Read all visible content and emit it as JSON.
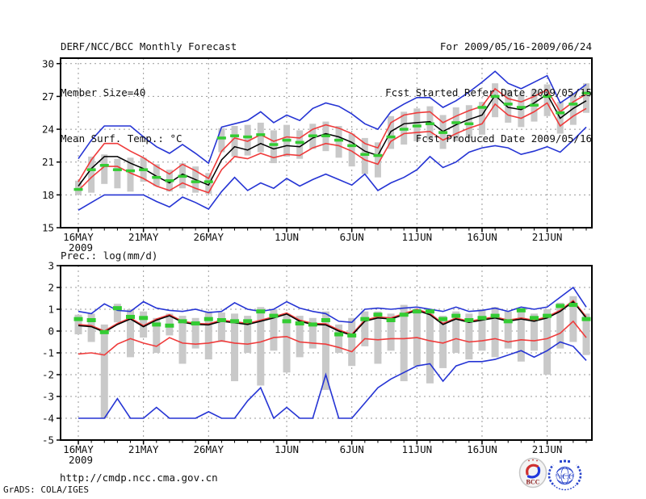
{
  "header": {
    "left": [
      "DERF/NCC/BCC Monthly Forecast",
      "Member Size=40",
      "Mean Surf. Temp.: °C"
    ],
    "right": [
      "For 2009/05/16-2009/06/24",
      "Fcst Started Refer Date 2009/05/15",
      "Fcst Produced Date 2009/05/16"
    ]
  },
  "footer": {
    "url": "http://cmdp.ncc.cma.gov.cn",
    "credit": "GrADS: COLA/IGES"
  },
  "logos": {
    "bcc": "BCC",
    "ncc": "NCC"
  },
  "colors": {
    "blue": "#2534d4",
    "red": "#ef3b3b",
    "black": "#000000",
    "green": "#33cc33",
    "bar_gray": "#c9c9c9",
    "grid": "#999999"
  },
  "chart_data": [
    {
      "type": "line",
      "title": "Mean Surf. Temp.: °C",
      "x_year_label": "2009",
      "x_tick_days": [
        0,
        5,
        10,
        16,
        21,
        26,
        31,
        36
      ],
      "x_tick_labels": [
        "16MAY",
        "21MAY",
        "26MAY",
        "1JUN",
        "6JUN",
        "11JUN",
        "16JUN",
        "21JUN"
      ],
      "n_days": 40,
      "ylim": [
        15,
        30
      ],
      "yticks": [
        15,
        18,
        21,
        24,
        27,
        30
      ],
      "grid": "dotted",
      "legend": "none",
      "series": [
        {
          "name": "ensemble-max-blue",
          "color": "#2534d4",
          "values": [
            21.3,
            23.0,
            24.3,
            24.3,
            24.3,
            23.3,
            22.4,
            21.8,
            22.6,
            21.8,
            20.9,
            24.2,
            24.5,
            24.8,
            25.6,
            24.6,
            25.3,
            24.8,
            25.9,
            26.4,
            26.1,
            25.4,
            24.5,
            24.0,
            25.6,
            26.3,
            26.9,
            26.9,
            26.0,
            26.6,
            27.4,
            28.3,
            29.3,
            28.2,
            27.7,
            28.3,
            28.9,
            26.4,
            27.2,
            28.1
          ]
        },
        {
          "name": "spread-upper-red",
          "color": "#ef3b3b",
          "values": [
            19.2,
            21.2,
            22.7,
            22.7,
            22.0,
            21.4,
            20.6,
            19.9,
            20.8,
            20.2,
            19.5,
            22.0,
            23.2,
            22.9,
            23.5,
            22.9,
            23.3,
            23.2,
            24.0,
            24.4,
            24.1,
            23.6,
            22.7,
            22.3,
            24.6,
            25.3,
            25.5,
            25.6,
            24.6,
            25.2,
            25.7,
            26.1,
            27.7,
            26.8,
            26.5,
            27.0,
            27.6,
            25.6,
            26.5,
            27.2
          ]
        },
        {
          "name": "ensemble-mean-black",
          "color": "#000000",
          "values": [
            18.8,
            20.4,
            21.5,
            21.5,
            20.9,
            20.4,
            19.7,
            19.1,
            19.9,
            19.4,
            18.9,
            21.2,
            22.4,
            22.1,
            22.7,
            22.2,
            22.5,
            22.4,
            23.2,
            23.6,
            23.3,
            22.8,
            22.0,
            21.6,
            23.8,
            24.5,
            24.6,
            24.7,
            23.8,
            24.4,
            24.9,
            25.3,
            27.1,
            26.0,
            25.8,
            26.4,
            27.2,
            25.0,
            25.9,
            26.6
          ]
        },
        {
          "name": "spread-lower-red",
          "color": "#ef3b3b",
          "values": [
            18.4,
            19.6,
            20.6,
            20.6,
            20.0,
            19.5,
            18.8,
            18.4,
            19.1,
            18.6,
            18.2,
            20.3,
            21.5,
            21.3,
            21.8,
            21.4,
            21.7,
            21.6,
            22.3,
            22.7,
            22.5,
            22.0,
            21.2,
            20.8,
            22.9,
            23.6,
            23.7,
            23.8,
            23.0,
            23.6,
            24.1,
            24.5,
            26.3,
            25.3,
            25.0,
            25.6,
            26.4,
            24.3,
            25.2,
            25.9
          ]
        },
        {
          "name": "ensemble-min-blue",
          "color": "#2534d4",
          "values": [
            16.6,
            17.3,
            18.0,
            18.0,
            18.0,
            18.0,
            17.4,
            16.9,
            17.8,
            17.3,
            16.7,
            18.3,
            19.6,
            18.4,
            19.1,
            18.6,
            19.5,
            18.8,
            19.4,
            19.9,
            19.4,
            18.9,
            19.9,
            18.4,
            19.1,
            19.6,
            20.3,
            21.5,
            20.5,
            21.0,
            21.9,
            22.3,
            22.5,
            22.3,
            21.7,
            22.0,
            22.4,
            21.9,
            23.0,
            24.2
          ]
        }
      ],
      "dashes": {
        "name": "green-daily-dashes",
        "color": "#33cc33",
        "values": [
          18.5,
          20.3,
          20.7,
          20.3,
          20.2,
          20.3,
          19.6,
          19.3,
          19.7,
          19.2,
          19.2,
          23.2,
          23.4,
          23.3,
          23.5,
          22.6,
          23.0,
          22.8,
          23.4,
          23.4,
          23.0,
          22.5,
          21.7,
          21.6,
          23.3,
          24.0,
          24.3,
          24.5,
          23.7,
          24.6,
          24.5,
          26.0,
          27.0,
          26.3,
          26.0,
          26.2,
          27.0,
          25.5,
          26.3,
          27.3
        ]
      },
      "bars": {
        "name": "ensemble-spread-bars",
        "color": "#c9c9c9",
        "lo": [
          18.0,
          18.2,
          19.0,
          18.6,
          18.3,
          19.2,
          18.8,
          18.3,
          18.6,
          18.2,
          18.1,
          21.9,
          21.5,
          21.6,
          21.9,
          20.9,
          21.5,
          21.3,
          22.2,
          22.0,
          21.4,
          20.6,
          19.9,
          19.6,
          22.2,
          22.6,
          22.9,
          23.0,
          22.2,
          22.9,
          23.2,
          23.5,
          25.1,
          24.6,
          24.2,
          24.7,
          25.2,
          23.6,
          24.4,
          25.5
        ],
        "hi": [
          19.3,
          21.5,
          21.7,
          21.3,
          21.4,
          21.4,
          20.8,
          20.3,
          20.9,
          20.6,
          20.0,
          24.1,
          24.3,
          24.4,
          24.6,
          23.9,
          24.4,
          23.9,
          24.5,
          24.7,
          24.3,
          23.6,
          23.2,
          22.8,
          25.2,
          25.6,
          25.9,
          26.1,
          25.3,
          26.0,
          26.2,
          26.5,
          28.2,
          27.6,
          27.2,
          27.6,
          28.1,
          26.5,
          27.3,
          28.2
        ]
      }
    },
    {
      "type": "line",
      "title": "Prec.: log(mm/d)",
      "x_year_label": "2009",
      "x_tick_days": [
        0,
        5,
        10,
        16,
        21,
        26,
        31,
        36
      ],
      "x_tick_labels": [
        "16MAY",
        "21MAY",
        "26MAY",
        "1JUN",
        "6JUN",
        "11JUN",
        "16JUN",
        "21JUN"
      ],
      "n_days": 40,
      "ylim": [
        -5,
        3
      ],
      "yticks": [
        -5,
        -4,
        -3,
        -2,
        -1,
        0,
        1,
        2,
        3
      ],
      "grid": "dotted",
      "legend": "none",
      "series": [
        {
          "name": "ensemble-max-blue",
          "color": "#2534d4",
          "values": [
            0.9,
            0.8,
            1.25,
            0.95,
            0.9,
            1.35,
            1.05,
            0.95,
            0.9,
            1.0,
            0.85,
            0.9,
            1.3,
            1.0,
            0.9,
            1.0,
            1.35,
            1.05,
            0.9,
            0.8,
            0.45,
            0.4,
            1.0,
            1.05,
            1.0,
            1.05,
            1.1,
            1.0,
            0.9,
            1.1,
            0.9,
            0.95,
            1.05,
            0.9,
            1.1,
            1.0,
            1.1,
            1.55,
            2.0,
            1.1
          ]
        },
        {
          "name": "spread-upper-red",
          "color": "#ef3b3b",
          "values": [
            0.3,
            0.25,
            0.0,
            0.35,
            0.6,
            0.25,
            0.55,
            0.75,
            0.45,
            0.35,
            0.33,
            0.5,
            0.43,
            0.35,
            0.5,
            0.65,
            0.83,
            0.5,
            0.35,
            0.33,
            0.05,
            -0.15,
            0.5,
            0.65,
            0.6,
            0.8,
            1.0,
            0.8,
            0.35,
            0.6,
            0.45,
            0.55,
            0.65,
            0.5,
            0.6,
            0.5,
            0.65,
            0.95,
            1.4,
            0.65
          ]
        },
        {
          "name": "ensemble-mean-black",
          "color": "#000000",
          "values": [
            0.25,
            0.2,
            -0.05,
            0.3,
            0.55,
            0.2,
            0.5,
            0.7,
            0.4,
            0.3,
            0.28,
            0.45,
            0.38,
            0.3,
            0.45,
            0.6,
            0.78,
            0.45,
            0.3,
            0.28,
            0.0,
            -0.2,
            0.45,
            0.6,
            0.55,
            0.75,
            0.95,
            0.75,
            0.3,
            0.55,
            0.4,
            0.5,
            0.6,
            0.45,
            0.55,
            0.45,
            0.6,
            0.9,
            1.35,
            0.6
          ]
        },
        {
          "name": "spread-lower-red",
          "color": "#ef3b3b",
          "values": [
            -1.05,
            -1.0,
            -1.1,
            -0.6,
            -0.35,
            -0.55,
            -0.7,
            -0.3,
            -0.55,
            -0.6,
            -0.55,
            -0.45,
            -0.55,
            -0.6,
            -0.5,
            -0.3,
            -0.25,
            -0.5,
            -0.55,
            -0.6,
            -0.75,
            -0.95,
            -0.35,
            -0.4,
            -0.35,
            -0.35,
            -0.3,
            -0.45,
            -0.55,
            -0.35,
            -0.5,
            -0.45,
            -0.35,
            -0.5,
            -0.4,
            -0.45,
            -0.35,
            -0.1,
            0.45,
            -0.3
          ]
        },
        {
          "name": "ensemble-min-blue",
          "color": "#2534d4",
          "values": [
            -4,
            -4,
            -4,
            -3.1,
            -4,
            -4,
            -3.5,
            -4,
            -4,
            -4,
            -3.7,
            -4,
            -4,
            -3.2,
            -2.6,
            -4,
            -3.5,
            -4,
            -4,
            -2.0,
            -4,
            -4,
            -3.3,
            -2.6,
            -2.2,
            -1.9,
            -1.6,
            -1.5,
            -2.3,
            -1.6,
            -1.4,
            -1.4,
            -1.3,
            -1.1,
            -0.9,
            -1.2,
            -0.9,
            -0.5,
            -0.7,
            -1.35
          ]
        }
      ],
      "dashes": {
        "name": "green-daily-dashes",
        "color": "#33cc33",
        "values": [
          0.55,
          0.5,
          -0.05,
          1.05,
          0.65,
          0.6,
          0.3,
          0.25,
          0.45,
          0.35,
          0.55,
          0.5,
          0.45,
          0.45,
          0.9,
          0.7,
          0.45,
          0.35,
          0.3,
          0.5,
          -0.15,
          -0.2,
          0.55,
          0.75,
          0.5,
          0.75,
          0.9,
          0.9,
          0.55,
          0.7,
          0.5,
          0.6,
          0.7,
          0.45,
          0.95,
          0.6,
          0.7,
          1.15,
          1.2,
          0.55
        ]
      },
      "bars": {
        "name": "ensemble-spread-bars",
        "color": "#c9c9c9",
        "lo": [
          -0.15,
          -0.5,
          -4.0,
          0.4,
          -1.2,
          -0.3,
          -1.0,
          -0.2,
          -1.5,
          -0.8,
          -1.3,
          -0.5,
          -2.3,
          -1.0,
          -2.5,
          -0.9,
          -1.9,
          -1.2,
          -0.8,
          -2.7,
          -1.0,
          -1.6,
          -0.7,
          -1.5,
          -0.9,
          -2.3,
          -1.6,
          -2.4,
          -1.7,
          -1.0,
          -1.3,
          -0.9,
          -1.2,
          -0.8,
          -1.4,
          -0.9,
          -2.0,
          -0.8,
          -0.5,
          -1.1
        ],
        "hi": [
          0.75,
          0.8,
          0.3,
          1.25,
          1.0,
          0.9,
          0.6,
          0.8,
          0.7,
          0.6,
          0.9,
          0.85,
          0.8,
          0.7,
          1.1,
          1.0,
          0.8,
          0.7,
          0.6,
          0.9,
          0.3,
          0.6,
          0.9,
          0.9,
          0.8,
          1.2,
          1.0,
          0.9,
          0.7,
          0.9,
          0.8,
          1.0,
          1.1,
          0.9,
          1.0,
          0.8,
          1.0,
          1.3,
          1.6,
          0.8
        ]
      }
    }
  ]
}
